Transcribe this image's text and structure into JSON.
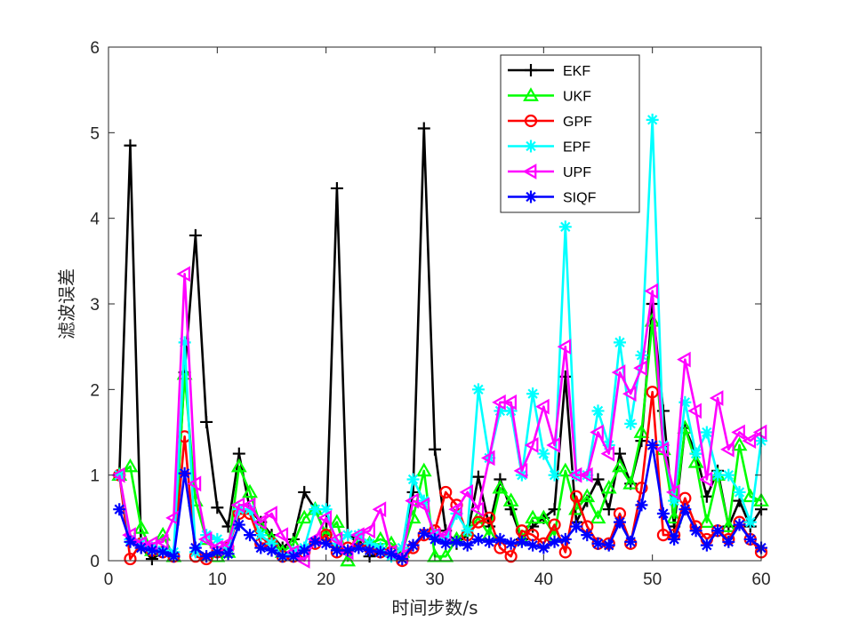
{
  "chart_data": {
    "type": "line",
    "xlabel": "时间步数/s",
    "ylabel": "滤波误差",
    "xlim": [
      0,
      60
    ],
    "ylim": [
      0,
      6
    ],
    "xticks": [
      0,
      10,
      20,
      30,
      40,
      50,
      60
    ],
    "yticks": [
      0,
      1,
      2,
      3,
      4,
      5,
      6
    ],
    "grid": false,
    "legend_position": "top-right",
    "x": [
      1,
      2,
      3,
      4,
      5,
      6,
      7,
      8,
      9,
      10,
      11,
      12,
      13,
      14,
      15,
      16,
      17,
      18,
      19,
      20,
      21,
      22,
      23,
      24,
      25,
      26,
      27,
      28,
      29,
      30,
      31,
      32,
      33,
      34,
      35,
      36,
      37,
      38,
      39,
      40,
      41,
      42,
      43,
      44,
      45,
      46,
      47,
      48,
      49,
      50,
      51,
      52,
      53,
      54,
      55,
      56,
      57,
      58,
      59,
      60
    ],
    "series": [
      {
        "name": "EKF",
        "color": "#000000",
        "marker": "plus",
        "values": [
          1.0,
          4.85,
          0.15,
          0.02,
          0.1,
          0.05,
          2.2,
          3.8,
          1.62,
          0.62,
          0.4,
          1.25,
          0.6,
          0.45,
          0.3,
          0.15,
          0.25,
          0.8,
          0.6,
          0.3,
          4.35,
          0.3,
          0.25,
          0.05,
          0.1,
          0.08,
          0.1,
          0.8,
          5.05,
          1.3,
          0.35,
          0.2,
          0.3,
          0.98,
          0.4,
          0.95,
          0.6,
          0.25,
          0.4,
          0.5,
          0.6,
          2.15,
          0.45,
          0.7,
          0.95,
          0.6,
          1.25,
          0.9,
          1.4,
          3.0,
          1.75,
          0.4,
          1.55,
          1.25,
          0.75,
          1.05,
          0.4,
          0.7,
          0.4,
          0.6
        ]
      },
      {
        "name": "UKF",
        "color": "#00ff00",
        "marker": "triangle-up",
        "values": [
          1.0,
          1.1,
          0.38,
          0.12,
          0.3,
          0.05,
          2.18,
          0.7,
          0.25,
          0.05,
          0.1,
          1.1,
          0.8,
          0.4,
          0.25,
          0.1,
          0.2,
          0.5,
          0.6,
          0.3,
          0.45,
          0.0,
          0.25,
          0.2,
          0.25,
          0.2,
          0.1,
          0.5,
          1.05,
          0.05,
          0.05,
          0.25,
          0.35,
          0.5,
          0.3,
          0.85,
          0.7,
          0.25,
          0.5,
          0.5,
          0.3,
          1.05,
          0.6,
          0.75,
          0.5,
          0.85,
          1.1,
          0.9,
          1.5,
          2.8,
          1.3,
          0.5,
          1.55,
          1.15,
          0.45,
          1.0,
          0.4,
          1.35,
          0.75,
          0.7
        ]
      },
      {
        "name": "GPF",
        "color": "#ff0000",
        "marker": "circle",
        "values": [
          1.0,
          0.02,
          0.2,
          0.12,
          0.1,
          0.05,
          1.45,
          0.05,
          0.02,
          0.1,
          0.15,
          0.55,
          0.55,
          0.2,
          0.2,
          0.05,
          0.05,
          0.1,
          0.2,
          0.3,
          0.1,
          0.15,
          0.2,
          0.15,
          0.1,
          0.1,
          0.0,
          0.15,
          0.3,
          0.35,
          0.8,
          0.65,
          0.3,
          0.45,
          0.5,
          0.15,
          0.05,
          0.35,
          0.3,
          0.2,
          0.42,
          0.1,
          0.75,
          0.4,
          0.2,
          0.2,
          0.55,
          0.2,
          0.85,
          1.97,
          0.3,
          0.3,
          0.73,
          0.4,
          0.25,
          0.35,
          0.25,
          0.45,
          0.25,
          0.1
        ]
      },
      {
        "name": "EPF",
        "color": "#00ffff",
        "marker": "star",
        "values": [
          1.0,
          0.25,
          0.2,
          0.15,
          0.12,
          0.1,
          2.55,
          0.1,
          0.3,
          0.25,
          0.15,
          0.6,
          0.6,
          0.3,
          0.2,
          0.05,
          0.1,
          0.15,
          0.6,
          0.6,
          0.2,
          0.3,
          0.3,
          0.2,
          0.15,
          0.05,
          0.15,
          0.95,
          0.7,
          0.3,
          0.25,
          0.55,
          0.35,
          2.0,
          1.2,
          1.75,
          1.75,
          1.0,
          1.95,
          1.25,
          1.0,
          3.9,
          1.0,
          1.0,
          1.75,
          1.35,
          2.55,
          1.6,
          2.4,
          5.15,
          1.35,
          0.7,
          1.85,
          1.25,
          1.5,
          1.0,
          1.0,
          0.8,
          0.45,
          1.4
        ]
      },
      {
        "name": "UPF",
        "color": "#ff00ff",
        "marker": "triangle-left",
        "values": [
          1.0,
          0.3,
          0.2,
          0.2,
          0.22,
          0.5,
          3.35,
          0.9,
          0.25,
          0.15,
          0.2,
          0.65,
          0.65,
          0.45,
          0.55,
          0.3,
          0.1,
          0.0,
          0.25,
          0.5,
          0.25,
          0.1,
          0.3,
          0.35,
          0.6,
          0.1,
          0.05,
          0.7,
          0.65,
          0.3,
          0.3,
          0.6,
          0.8,
          0.6,
          1.2,
          1.85,
          1.85,
          1.05,
          1.35,
          1.8,
          1.35,
          2.5,
          1.0,
          1.0,
          1.5,
          1.25,
          2.2,
          1.95,
          2.25,
          3.15,
          1.3,
          0.8,
          2.35,
          1.75,
          0.95,
          1.9,
          1.3,
          1.5,
          1.4,
          1.5
        ]
      },
      {
        "name": "SIQF",
        "color": "#0000ff",
        "marker": "asterisk",
        "values": [
          0.6,
          0.22,
          0.15,
          0.12,
          0.1,
          0.05,
          1.02,
          0.15,
          0.05,
          0.1,
          0.08,
          0.42,
          0.3,
          0.15,
          0.12,
          0.05,
          0.05,
          0.12,
          0.22,
          0.2,
          0.12,
          0.12,
          0.15,
          0.12,
          0.1,
          0.08,
          0.02,
          0.18,
          0.32,
          0.25,
          0.2,
          0.22,
          0.18,
          0.25,
          0.22,
          0.25,
          0.2,
          0.22,
          0.18,
          0.15,
          0.22,
          0.25,
          0.4,
          0.3,
          0.2,
          0.18,
          0.45,
          0.22,
          0.65,
          1.35,
          0.55,
          0.25,
          0.6,
          0.35,
          0.18,
          0.35,
          0.22,
          0.42,
          0.25,
          0.15
        ]
      }
    ]
  }
}
